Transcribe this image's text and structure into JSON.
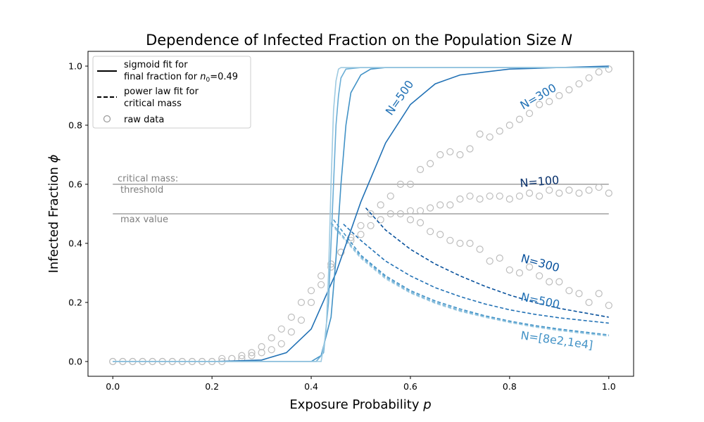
{
  "chart_data": {
    "type": "line",
    "title": "Dependence of Infected Fraction on the Population Size",
    "title_symbol": "N",
    "xlabel": "Exposure Probability",
    "xlabel_symbol": "p",
    "ylabel": "Infected Fraction",
    "ylabel_symbol": "ϕ",
    "xlim": [
      -0.05,
      1.05
    ],
    "ylim": [
      -0.05,
      1.05
    ],
    "x_ticks": [
      "0.0",
      "0.2",
      "0.4",
      "0.6",
      "0.8",
      "1.0"
    ],
    "y_ticks": [
      "0.0",
      "0.2",
      "0.4",
      "0.6",
      "0.8",
      "1.0"
    ],
    "grid": false,
    "legend": {
      "placement": "upper-left",
      "entries": [
        {
          "style": "solid",
          "line1": "sigmoid fit for",
          "line2_prefix": "final fraction for ",
          "line2_symbol": "n",
          "line2_sub": "0",
          "line2_suffix": "=0.49"
        },
        {
          "style": "dashed",
          "line1": "power law fit for",
          "line2_prefix": "critical mass",
          "line2_symbol": "",
          "line2_sub": "",
          "line2_suffix": ""
        },
        {
          "style": "marker",
          "line1": "raw data",
          "line2_prefix": "",
          "line2_symbol": "",
          "line2_sub": "",
          "line2_suffix": ""
        }
      ]
    },
    "reference_lines": [
      {
        "y": 0.6,
        "label_line1": "critical mass:",
        "label_line2": "threshold"
      },
      {
        "y": 0.5,
        "label_line1": "max value",
        "label_line2": ""
      }
    ],
    "sigmoid_series": [
      {
        "curve_label": "N=500",
        "color": "#2171b5",
        "x": [
          0.0,
          0.2,
          0.3,
          0.35,
          0.4,
          0.45,
          0.5,
          0.55,
          0.6,
          0.65,
          0.7,
          0.8,
          0.9,
          1.0
        ],
        "y": [
          0.0,
          0.0,
          0.005,
          0.03,
          0.11,
          0.3,
          0.54,
          0.74,
          0.87,
          0.94,
          0.97,
          0.99,
          0.995,
          1.0
        ]
      },
      {
        "curve_label": "",
        "color": "#4292c6",
        "x": [
          0.0,
          0.4,
          0.42,
          0.44,
          0.45,
          0.46,
          0.47,
          0.48,
          0.5,
          0.52,
          0.55,
          0.6,
          0.8,
          1.0
        ],
        "y": [
          0.0,
          0.0,
          0.02,
          0.15,
          0.35,
          0.6,
          0.8,
          0.91,
          0.97,
          0.99,
          0.995,
          0.995,
          0.995,
          0.995
        ]
      },
      {
        "curve_label": "",
        "color": "#6baed6",
        "x": [
          0.0,
          0.41,
          0.425,
          0.435,
          0.44,
          0.445,
          0.45,
          0.455,
          0.46,
          0.47,
          0.5,
          0.6,
          0.8,
          1.0
        ],
        "y": [
          0.0,
          0.0,
          0.03,
          0.2,
          0.4,
          0.6,
          0.8,
          0.9,
          0.96,
          0.99,
          0.995,
          0.995,
          0.995,
          0.995
        ]
      },
      {
        "curve_label": "",
        "color": "#9ecae1",
        "x": [
          0.0,
          0.42,
          0.43,
          0.435,
          0.44,
          0.445,
          0.45,
          0.455,
          0.46,
          0.47,
          0.5,
          0.6,
          0.8,
          1.0
        ],
        "y": [
          0.0,
          0.0,
          0.1,
          0.3,
          0.6,
          0.85,
          0.95,
          0.99,
          0.995,
          0.995,
          0.995,
          0.995,
          0.995,
          0.995
        ]
      }
    ],
    "power_law_series": [
      {
        "curve_label": "N=300",
        "color": "#08519c",
        "x": [
          0.51,
          0.55,
          0.6,
          0.65,
          0.7,
          0.75,
          0.8,
          0.85,
          0.9,
          0.95,
          1.0
        ],
        "y": [
          0.52,
          0.445,
          0.38,
          0.33,
          0.29,
          0.255,
          0.225,
          0.2,
          0.18,
          0.165,
          0.15
        ]
      },
      {
        "curve_label": "N=500",
        "color": "#2171b5",
        "x": [
          0.465,
          0.5,
          0.55,
          0.6,
          0.65,
          0.7,
          0.75,
          0.8,
          0.85,
          0.9,
          0.95,
          1.0
        ],
        "y": [
          0.465,
          0.41,
          0.34,
          0.29,
          0.25,
          0.22,
          0.195,
          0.175,
          0.16,
          0.148,
          0.139,
          0.13
        ]
      },
      {
        "curve_label": "N=[8e2,1e4]",
        "color": "#4292c6",
        "x": [
          0.445,
          0.5,
          0.55,
          0.6,
          0.65,
          0.7,
          0.75,
          0.8,
          0.85,
          0.9,
          0.95,
          1.0
        ],
        "y": [
          0.48,
          0.36,
          0.29,
          0.24,
          0.205,
          0.178,
          0.155,
          0.137,
          0.122,
          0.11,
          0.1,
          0.09
        ]
      },
      {
        "curve_label": "",
        "color": "#6baed6",
        "x": [
          0.44,
          0.5,
          0.55,
          0.6,
          0.65,
          0.7,
          0.75,
          0.8,
          0.85,
          0.9,
          0.95,
          1.0
        ],
        "y": [
          0.47,
          0.355,
          0.285,
          0.235,
          0.2,
          0.173,
          0.152,
          0.134,
          0.119,
          0.107,
          0.097,
          0.088
        ]
      },
      {
        "curve_label": "",
        "color": "#9ecae1",
        "x": [
          0.44,
          0.5,
          0.55,
          0.6,
          0.65,
          0.7,
          0.75,
          0.8,
          0.85,
          0.9,
          0.95,
          1.0
        ],
        "y": [
          0.465,
          0.35,
          0.28,
          0.232,
          0.197,
          0.17,
          0.15,
          0.132,
          0.117,
          0.105,
          0.095,
          0.086
        ]
      }
    ],
    "raw_data_series": [
      {
        "curve_label": "N=300",
        "x": [
          0.0,
          0.02,
          0.04,
          0.06,
          0.08,
          0.1,
          0.12,
          0.14,
          0.16,
          0.18,
          0.2,
          0.22,
          0.24,
          0.26,
          0.28,
          0.3,
          0.32,
          0.34,
          0.36,
          0.38,
          0.4,
          0.42,
          0.44,
          0.46,
          0.48,
          0.5,
          0.52,
          0.54,
          0.56,
          0.58,
          0.6,
          0.62,
          0.64,
          0.66,
          0.68,
          0.7,
          0.72,
          0.74,
          0.76,
          0.78,
          0.8,
          0.82,
          0.84,
          0.86,
          0.88,
          0.9,
          0.92,
          0.94,
          0.96,
          0.98,
          1.0
        ],
        "y": [
          0.0,
          0.0,
          0.0,
          0.0,
          0.0,
          0.0,
          0.0,
          0.0,
          0.0,
          0.0,
          0.0,
          0.01,
          0.01,
          0.02,
          0.03,
          0.05,
          0.08,
          0.11,
          0.15,
          0.2,
          0.24,
          0.29,
          0.33,
          0.37,
          0.42,
          0.46,
          0.5,
          0.53,
          0.56,
          0.6,
          0.6,
          0.65,
          0.67,
          0.7,
          0.71,
          0.7,
          0.72,
          0.77,
          0.76,
          0.78,
          0.8,
          0.82,
          0.84,
          0.87,
          0.88,
          0.9,
          0.92,
          0.94,
          0.96,
          0.98,
          0.99
        ]
      },
      {
        "curve_label": "N=100",
        "x": [
          0.0,
          0.02,
          0.04,
          0.06,
          0.08,
          0.1,
          0.12,
          0.14,
          0.16,
          0.18,
          0.2,
          0.22,
          0.24,
          0.26,
          0.28,
          0.3,
          0.32,
          0.34,
          0.36,
          0.38,
          0.4,
          0.42,
          0.44,
          0.46,
          0.48,
          0.5,
          0.52,
          0.54,
          0.56,
          0.58,
          0.6,
          0.62,
          0.64,
          0.66,
          0.68,
          0.7,
          0.72,
          0.74,
          0.76,
          0.78,
          0.8,
          0.82,
          0.84,
          0.86,
          0.88,
          0.9,
          0.92,
          0.94,
          0.96,
          0.98,
          1.0
        ],
        "y": [
          0.0,
          0.0,
          0.0,
          0.0,
          0.0,
          0.0,
          0.0,
          0.0,
          0.0,
          0.0,
          0.0,
          0.0,
          0.01,
          0.01,
          0.02,
          0.03,
          0.04,
          0.06,
          0.1,
          0.14,
          0.2,
          0.26,
          0.32,
          0.37,
          0.41,
          0.43,
          0.46,
          0.48,
          0.5,
          0.5,
          0.51,
          0.51,
          0.52,
          0.53,
          0.53,
          0.55,
          0.56,
          0.55,
          0.56,
          0.56,
          0.55,
          0.56,
          0.57,
          0.56,
          0.58,
          0.57,
          0.58,
          0.57,
          0.58,
          0.59,
          0.57
        ]
      },
      {
        "curve_label": "",
        "x": [
          0.6,
          0.62,
          0.64,
          0.66,
          0.68,
          0.7,
          0.72,
          0.74,
          0.76,
          0.78,
          0.8,
          0.82,
          0.84,
          0.86,
          0.88,
          0.9,
          0.92,
          0.94,
          0.96,
          0.98,
          1.0
        ],
        "y": [
          0.48,
          0.47,
          0.44,
          0.43,
          0.41,
          0.4,
          0.4,
          0.38,
          0.34,
          0.35,
          0.31,
          0.3,
          0.32,
          0.29,
          0.27,
          0.27,
          0.24,
          0.23,
          0.2,
          0.23,
          0.19
        ]
      }
    ],
    "curve_annotations": [
      {
        "text": "N=500",
        "color": "#2171b5"
      },
      {
        "text": "N=300",
        "color": "#2171b5"
      },
      {
        "text": "N=100",
        "color": "#08306b"
      },
      {
        "text": "N=300",
        "color": "#08519c"
      },
      {
        "text": "N=500",
        "color": "#2171b5"
      },
      {
        "text": "N=[8e2,1e4]",
        "color": "#4292c6"
      }
    ]
  }
}
